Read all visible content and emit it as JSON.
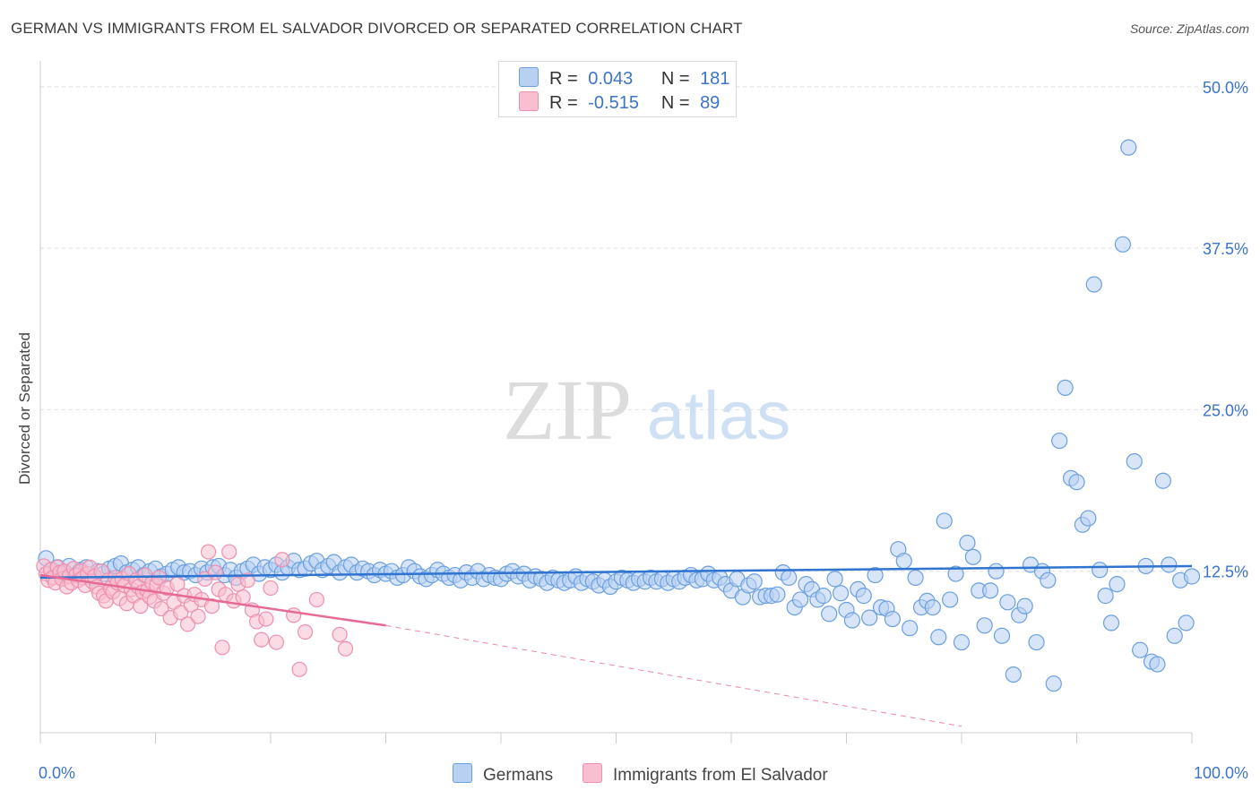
{
  "header": {
    "title": "GERMAN VS IMMIGRANTS FROM EL SALVADOR DIVORCED OR SEPARATED CORRELATION CHART",
    "source": "Source: ZipAtlas.com"
  },
  "watermark": {
    "zip": "ZIP",
    "atlas": "atlas"
  },
  "legend_top": {
    "rows": [
      {
        "r_label": "R =",
        "r_value": "0.043",
        "n_label": "N =",
        "n_value": "181"
      },
      {
        "r_label": "R =",
        "r_value": "-0.515",
        "n_label": "N =",
        "n_value": "89"
      }
    ]
  },
  "legend_bottom": {
    "items": [
      "Germans",
      "Immigrants from El Salvador"
    ]
  },
  "colors": {
    "blue_fill": "#b8d0f2",
    "blue_stroke": "#6a9fe0",
    "blue_line": "#2f74d0",
    "pink_fill": "#f7bfd0",
    "pink_stroke": "#ee8fae",
    "pink_line": "#e66a95",
    "tick_label": "#3b74c9",
    "grid": "#dedede"
  },
  "chart_data": {
    "type": "scatter",
    "title": "GERMAN VS IMMIGRANTS FROM EL SALVADOR DIVORCED OR SEPARATED CORRELATION CHART",
    "xlabel": "",
    "ylabel": "Divorced or Separated",
    "xlim": [
      0,
      100
    ],
    "ylim": [
      0,
      52
    ],
    "x_tick_labels": [
      "0.0%",
      "100.0%"
    ],
    "y_ticks": [
      12.5,
      25.0,
      37.5,
      50.0
    ],
    "y_tick_labels": [
      "12.5%",
      "25.0%",
      "37.5%",
      "50.0%"
    ],
    "grid": true,
    "legend_placement": "top-center",
    "series": [
      {
        "name": "Germans",
        "color": "#6a9fe0",
        "r": 0.043,
        "n": 181,
        "trend": {
          "x": [
            0,
            100
          ],
          "y": [
            12.0,
            12.9
          ]
        },
        "points": [
          [
            0.5,
            13.5
          ],
          [
            1.0,
            12.6
          ],
          [
            1.5,
            12.8
          ],
          [
            2.0,
            12.4
          ],
          [
            2.5,
            12.9
          ],
          [
            3.0,
            12.2
          ],
          [
            3.5,
            12.6
          ],
          [
            4.0,
            12.8
          ],
          [
            4.5,
            12.0
          ],
          [
            5.0,
            12.5
          ],
          [
            5.5,
            12.3
          ],
          [
            6.0,
            12.7
          ],
          [
            6.5,
            12.9
          ],
          [
            7.0,
            13.1
          ],
          [
            7.5,
            12.4
          ],
          [
            8.0,
            12.6
          ],
          [
            8.5,
            12.8
          ],
          [
            9.0,
            12.2
          ],
          [
            9.5,
            12.5
          ],
          [
            10.0,
            12.7
          ],
          [
            10.5,
            12.1
          ],
          [
            11.0,
            12.3
          ],
          [
            11.5,
            12.6
          ],
          [
            12.0,
            12.8
          ],
          [
            12.5,
            12.4
          ],
          [
            13.0,
            12.5
          ],
          [
            13.5,
            12.2
          ],
          [
            14.0,
            12.7
          ],
          [
            14.5,
            12.4
          ],
          [
            15.0,
            12.8
          ],
          [
            15.5,
            12.9
          ],
          [
            16.0,
            12.2
          ],
          [
            16.5,
            12.6
          ],
          [
            17.0,
            12.0
          ],
          [
            17.5,
            12.5
          ],
          [
            18.0,
            12.7
          ],
          [
            18.5,
            13.0
          ],
          [
            19.0,
            12.3
          ],
          [
            19.5,
            12.8
          ],
          [
            20.0,
            12.6
          ],
          [
            20.5,
            13.0
          ],
          [
            21.0,
            12.4
          ],
          [
            21.5,
            12.8
          ],
          [
            22.0,
            13.3
          ],
          [
            22.5,
            12.6
          ],
          [
            23.0,
            12.7
          ],
          [
            23.5,
            13.1
          ],
          [
            24.0,
            13.3
          ],
          [
            24.5,
            12.6
          ],
          [
            25.0,
            12.9
          ],
          [
            25.5,
            13.2
          ],
          [
            26.0,
            12.4
          ],
          [
            26.5,
            12.8
          ],
          [
            27.0,
            13.0
          ],
          [
            27.5,
            12.4
          ],
          [
            28.0,
            12.7
          ],
          [
            28.5,
            12.5
          ],
          [
            29.0,
            12.2
          ],
          [
            29.5,
            12.6
          ],
          [
            30.0,
            12.3
          ],
          [
            30.5,
            12.5
          ],
          [
            31.0,
            12.0
          ],
          [
            31.5,
            12.2
          ],
          [
            32.0,
            12.8
          ],
          [
            32.5,
            12.5
          ],
          [
            33.0,
            12.1
          ],
          [
            33.5,
            11.9
          ],
          [
            34.0,
            12.2
          ],
          [
            34.5,
            12.6
          ],
          [
            35.0,
            12.3
          ],
          [
            35.5,
            12.0
          ],
          [
            36.0,
            12.2
          ],
          [
            36.5,
            11.8
          ],
          [
            37.0,
            12.4
          ],
          [
            37.5,
            12.0
          ],
          [
            38.0,
            12.5
          ],
          [
            38.5,
            11.9
          ],
          [
            39.0,
            12.2
          ],
          [
            39.5,
            12.0
          ],
          [
            40.0,
            11.9
          ],
          [
            40.5,
            12.3
          ],
          [
            41.0,
            12.5
          ],
          [
            41.5,
            12.1
          ],
          [
            42.0,
            12.3
          ],
          [
            42.5,
            11.8
          ],
          [
            43.0,
            12.1
          ],
          [
            43.5,
            11.9
          ],
          [
            44.0,
            11.6
          ],
          [
            44.5,
            12.0
          ],
          [
            45.0,
            11.8
          ],
          [
            45.5,
            11.6
          ],
          [
            46.0,
            11.8
          ],
          [
            46.5,
            12.1
          ],
          [
            47.0,
            11.6
          ],
          [
            47.5,
            11.9
          ],
          [
            48.0,
            11.7
          ],
          [
            48.5,
            11.4
          ],
          [
            49.0,
            11.8
          ],
          [
            49.5,
            11.3
          ],
          [
            50.0,
            11.7
          ],
          [
            50.5,
            12.0
          ],
          [
            51.0,
            11.8
          ],
          [
            51.5,
            11.6
          ],
          [
            52.0,
            11.9
          ],
          [
            52.5,
            11.7
          ],
          [
            53.0,
            12.0
          ],
          [
            53.5,
            11.7
          ],
          [
            54.0,
            11.9
          ],
          [
            54.5,
            11.6
          ],
          [
            55.0,
            11.9
          ],
          [
            55.5,
            11.7
          ],
          [
            56.0,
            12.0
          ],
          [
            56.5,
            12.2
          ],
          [
            57.0,
            11.8
          ],
          [
            57.5,
            11.9
          ],
          [
            58.0,
            12.3
          ],
          [
            58.5,
            11.8
          ],
          [
            59.0,
            12.0
          ],
          [
            59.5,
            11.5
          ],
          [
            60.0,
            11.0
          ],
          [
            60.5,
            11.9
          ],
          [
            61.0,
            10.5
          ],
          [
            61.5,
            11.4
          ],
          [
            62.0,
            11.7
          ],
          [
            62.5,
            10.5
          ],
          [
            63.0,
            10.6
          ],
          [
            63.5,
            10.6
          ],
          [
            64.0,
            10.7
          ],
          [
            64.5,
            12.4
          ],
          [
            65.0,
            12.0
          ],
          [
            65.5,
            9.7
          ],
          [
            66.0,
            10.3
          ],
          [
            66.5,
            11.5
          ],
          [
            67.0,
            11.1
          ],
          [
            67.5,
            10.3
          ],
          [
            68.0,
            10.6
          ],
          [
            68.5,
            9.2
          ],
          [
            69.0,
            11.9
          ],
          [
            69.5,
            10.8
          ],
          [
            70.0,
            9.5
          ],
          [
            70.5,
            8.7
          ],
          [
            71.0,
            11.1
          ],
          [
            71.5,
            10.6
          ],
          [
            72.0,
            8.9
          ],
          [
            72.5,
            12.2
          ],
          [
            73.0,
            9.7
          ],
          [
            73.5,
            9.6
          ],
          [
            74.0,
            8.8
          ],
          [
            74.5,
            14.2
          ],
          [
            75.0,
            13.3
          ],
          [
            75.5,
            8.1
          ],
          [
            76.0,
            12.0
          ],
          [
            76.5,
            9.7
          ],
          [
            77.0,
            10.2
          ],
          [
            77.5,
            9.7
          ],
          [
            78.0,
            7.4
          ],
          [
            78.5,
            16.4
          ],
          [
            79.0,
            10.3
          ],
          [
            79.5,
            12.3
          ],
          [
            80.0,
            7.0
          ],
          [
            80.5,
            14.7
          ],
          [
            81.0,
            13.6
          ],
          [
            81.5,
            11.0
          ],
          [
            82.0,
            8.3
          ],
          [
            82.5,
            11.0
          ],
          [
            83.0,
            12.5
          ],
          [
            83.5,
            7.5
          ],
          [
            84.0,
            10.1
          ],
          [
            84.5,
            4.5
          ],
          [
            85.0,
            9.1
          ],
          [
            85.5,
            9.8
          ],
          [
            86.0,
            13.0
          ],
          [
            86.5,
            7.0
          ],
          [
            87.0,
            12.5
          ],
          [
            87.5,
            11.8
          ],
          [
            88.0,
            3.8
          ],
          [
            88.5,
            22.6
          ],
          [
            89.0,
            26.7
          ],
          [
            89.5,
            19.7
          ],
          [
            90.0,
            19.4
          ],
          [
            90.5,
            16.1
          ],
          [
            91.0,
            16.6
          ],
          [
            91.5,
            34.7
          ],
          [
            92.0,
            12.6
          ],
          [
            92.5,
            10.6
          ],
          [
            93.0,
            8.5
          ],
          [
            93.5,
            11.5
          ],
          [
            94.0,
            37.8
          ],
          [
            94.5,
            45.3
          ],
          [
            95.0,
            21.0
          ],
          [
            95.5,
            6.4
          ],
          [
            96.0,
            12.9
          ],
          [
            96.5,
            5.5
          ],
          [
            97.0,
            5.3
          ],
          [
            97.5,
            19.5
          ],
          [
            98.0,
            13.0
          ],
          [
            98.5,
            7.5
          ],
          [
            99.0,
            11.8
          ],
          [
            99.5,
            8.5
          ],
          [
            100.0,
            12.1
          ]
        ]
      },
      {
        "name": "Immigrants from El Salvador",
        "color": "#ee8fae",
        "r": -0.515,
        "n": 89,
        "trend": {
          "x": [
            0,
            30
          ],
          "y": [
            12.2,
            8.3
          ]
        },
        "trend_extension": {
          "x": [
            30,
            80
          ],
          "y": [
            8.3,
            0.5
          ]
        },
        "points": [
          [
            0.3,
            12.9
          ],
          [
            0.5,
            12.3
          ],
          [
            0.7,
            11.8
          ],
          [
            0.9,
            12.6
          ],
          [
            1.1,
            12.0
          ],
          [
            1.3,
            11.6
          ],
          [
            1.5,
            12.8
          ],
          [
            1.7,
            12.4
          ],
          [
            1.9,
            11.9
          ],
          [
            2.1,
            12.5
          ],
          [
            2.3,
            11.3
          ],
          [
            2.5,
            12.1
          ],
          [
            2.7,
            11.6
          ],
          [
            2.9,
            12.7
          ],
          [
            3.1,
            12.2
          ],
          [
            3.3,
            11.8
          ],
          [
            3.5,
            12.5
          ],
          [
            3.7,
            12.0
          ],
          [
            3.9,
            11.4
          ],
          [
            4.1,
            12.3
          ],
          [
            4.3,
            12.8
          ],
          [
            4.5,
            11.7
          ],
          [
            4.7,
            12.1
          ],
          [
            4.9,
            11.3
          ],
          [
            5.1,
            10.8
          ],
          [
            5.3,
            12.5
          ],
          [
            5.5,
            10.6
          ],
          [
            5.7,
            10.2
          ],
          [
            5.9,
            11.8
          ],
          [
            6.1,
            11.2
          ],
          [
            6.3,
            10.9
          ],
          [
            6.5,
            12.0
          ],
          [
            6.7,
            11.6
          ],
          [
            6.9,
            10.4
          ],
          [
            7.1,
            11.9
          ],
          [
            7.3,
            11.4
          ],
          [
            7.5,
            10.0
          ],
          [
            7.7,
            12.3
          ],
          [
            7.9,
            11.1
          ],
          [
            8.1,
            10.6
          ],
          [
            8.3,
            11.8
          ],
          [
            8.5,
            11.3
          ],
          [
            8.7,
            9.8
          ],
          [
            8.9,
            10.9
          ],
          [
            9.1,
            12.2
          ],
          [
            9.3,
            11.0
          ],
          [
            9.5,
            10.5
          ],
          [
            9.7,
            11.6
          ],
          [
            9.9,
            10.2
          ],
          [
            10.1,
            11.4
          ],
          [
            10.3,
            12.0
          ],
          [
            10.5,
            9.6
          ],
          [
            10.7,
            10.8
          ],
          [
            11.0,
            11.2
          ],
          [
            11.3,
            8.9
          ],
          [
            11.6,
            10.1
          ],
          [
            11.9,
            11.5
          ],
          [
            12.2,
            9.3
          ],
          [
            12.5,
            10.6
          ],
          [
            12.8,
            8.4
          ],
          [
            13.1,
            9.9
          ],
          [
            13.4,
            10.7
          ],
          [
            13.7,
            9.0
          ],
          [
            14.0,
            10.3
          ],
          [
            14.3,
            11.9
          ],
          [
            14.6,
            14.0
          ],
          [
            14.9,
            9.8
          ],
          [
            15.2,
            12.4
          ],
          [
            15.5,
            11.1
          ],
          [
            15.8,
            6.6
          ],
          [
            16.1,
            10.7
          ],
          [
            16.4,
            14.0
          ],
          [
            16.8,
            10.2
          ],
          [
            17.2,
            11.5
          ],
          [
            17.6,
            10.5
          ],
          [
            18.0,
            11.8
          ],
          [
            18.4,
            9.5
          ],
          [
            18.8,
            8.6
          ],
          [
            19.2,
            7.2
          ],
          [
            19.6,
            8.8
          ],
          [
            20.0,
            11.2
          ],
          [
            20.5,
            7.0
          ],
          [
            21.0,
            13.4
          ],
          [
            22.0,
            9.1
          ],
          [
            22.5,
            4.9
          ],
          [
            23.0,
            7.8
          ],
          [
            24.0,
            10.3
          ],
          [
            26.0,
            7.6
          ],
          [
            26.5,
            6.5
          ]
        ]
      }
    ]
  }
}
